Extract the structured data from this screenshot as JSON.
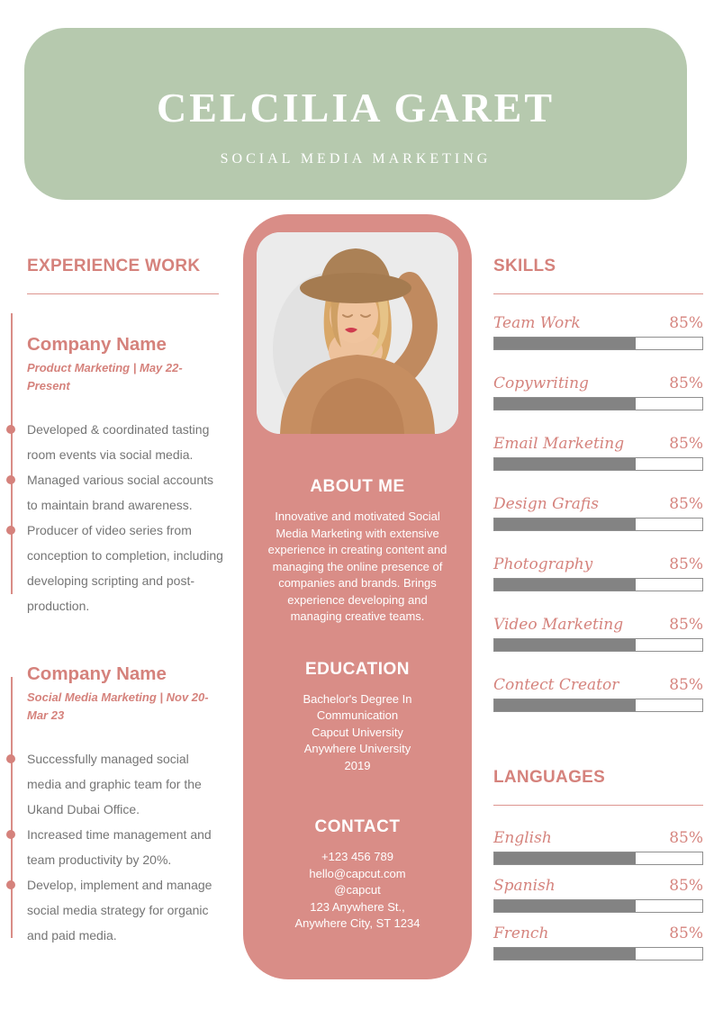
{
  "header": {
    "name": "CELCILIA GARET",
    "role": "SOCIAL MEDIA MARKETING"
  },
  "experience": {
    "heading": "EXPERIENCE WORK",
    "jobs": [
      {
        "company": "Company Name",
        "period": "Product Marketing | May 22-Present",
        "bullets": [
          "Developed & coordinated tasting room events via social media.",
          "Managed various social accounts to maintain brand awareness.",
          "Producer of video series from conception to completion, including developing scripting and post-production."
        ]
      },
      {
        "company": "Company Name",
        "period": "Social Media Marketing | Nov 20-Mar 23",
        "bullets": [
          "Successfully managed social media and graphic team for the Ukand Dubai Office.",
          "Increased time management and team productivity by 20%.",
          "Develop, implement and manage social media strategy for organic and paid media."
        ]
      }
    ]
  },
  "profile": {
    "about_heading": "ABOUT ME",
    "about_text": "Innovative and motivated Social Media Marketing with extensive experience in creating content and managing the online presence of companies and brands. Brings experience developing and managing creative teams.",
    "education_heading": "EDUCATION",
    "education_lines": [
      "Bachelor's Degree In Communication",
      "Capcut University",
      "Anywhere University",
      "2019"
    ],
    "contact_heading": "CONTACT",
    "contact_lines": [
      "+123  456 789",
      "hello@capcut.com",
      "@capcut",
      "123 Anywhere St.,",
      "Anywhere City, ST 1234"
    ]
  },
  "skills": {
    "heading": "SKILLS",
    "items": [
      {
        "label": "Team Work",
        "percent_label": "85%",
        "bar_fill": 68
      },
      {
        "label": "Copywriting",
        "percent_label": "85%",
        "bar_fill": 68
      },
      {
        "label": "Email Marketing",
        "percent_label": "85%",
        "bar_fill": 68
      },
      {
        "label": "Design Grafis",
        "percent_label": "85%",
        "bar_fill": 68
      },
      {
        "label": "Photography",
        "percent_label": "85%",
        "bar_fill": 68
      },
      {
        "label": "Video Marketing",
        "percent_label": "85%",
        "bar_fill": 68
      },
      {
        "label": "Contect Creator",
        "percent_label": "85%",
        "bar_fill": 68
      }
    ]
  },
  "languages": {
    "heading": "LANGUAGES",
    "items": [
      {
        "label": "English",
        "percent_label": "85%",
        "bar_fill": 68
      },
      {
        "label": "Spanish",
        "percent_label": "85%",
        "bar_fill": 68
      },
      {
        "label": "French",
        "percent_label": "85%",
        "bar_fill": 68
      }
    ]
  },
  "colors": {
    "header_green": "#b6c9ae",
    "panel_pink": "#d98d87",
    "accent_pink": "#d5827c",
    "bar_gray": "#838383",
    "body_gray": "#757575"
  }
}
